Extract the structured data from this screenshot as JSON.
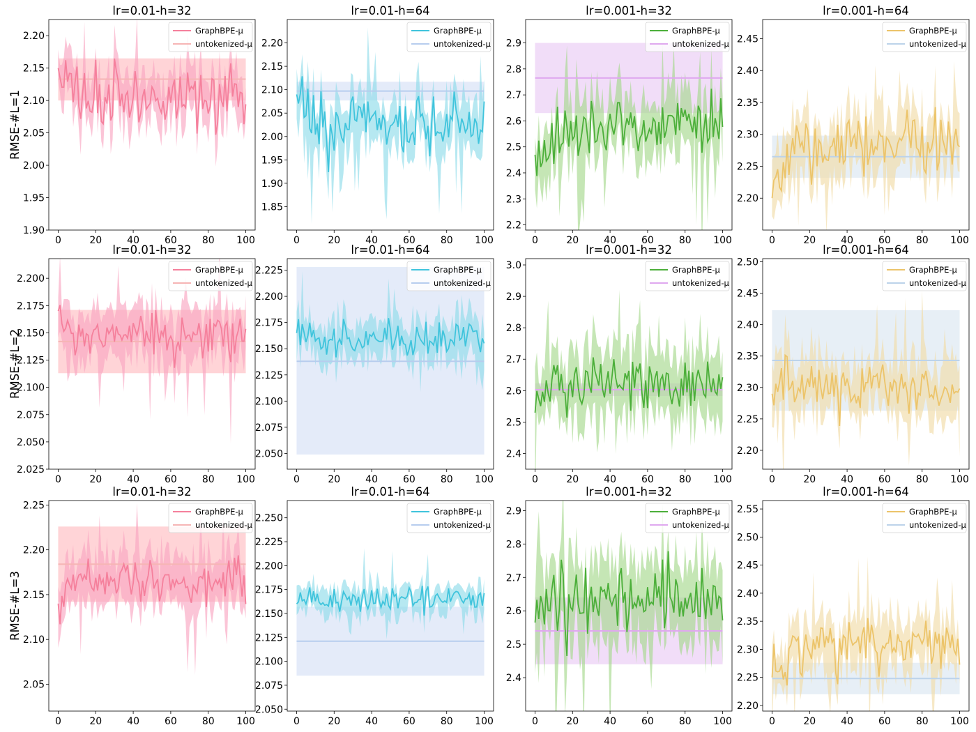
{
  "chart_data": {
    "type": "line",
    "x_range": [
      0,
      100
    ],
    "x_ticks": [
      0,
      20,
      40,
      60,
      80,
      100
    ],
    "legend_position": "top-right",
    "legend_labels": [
      "GraphBPE-μ",
      "untokenized-μ"
    ],
    "row_labels": [
      "RMSE-#L=1",
      "RMSE-#L=2",
      "RMSE-#L=3"
    ],
    "panels": [
      {
        "row": 0,
        "col": 0,
        "title": "lr=0.01-h=32",
        "line_color": "#f5809c",
        "band_color": "#f9a6c1",
        "base_color": "#f6b5b5",
        "base_band_color": "#ffb8bd",
        "ylim": [
          1.9,
          2.225
        ],
        "yticks": [
          "1.90",
          "1.95",
          "2.00",
          "2.05",
          "2.10",
          "2.15",
          "2.20"
        ],
        "series_mean": 2.105,
        "series_noise": 0.025,
        "series_band": 0.04,
        "series_start": 2.15,
        "series_dip": 0,
        "baseline": 2.133,
        "baseline_low": 2.1,
        "baseline_high": 2.165,
        "seed": 11
      },
      {
        "row": 0,
        "col": 1,
        "title": "lr=0.01-h=64",
        "line_color": "#40c4dc",
        "band_color": "#8fdcea",
        "base_color": "#b7cdee",
        "base_band_color": "#d2ddf5",
        "ylim": [
          1.8,
          2.25
        ],
        "yticks": [
          "1.85",
          "1.90",
          "1.95",
          "2.00",
          "2.05",
          "2.10",
          "2.15",
          "2.20"
        ],
        "series_mean": 2.02,
        "series_noise": 0.035,
        "series_band": 0.06,
        "series_start": 2.09,
        "series_dip": 0.05,
        "baseline": 2.097,
        "baseline_low": 2.077,
        "baseline_high": 2.117,
        "seed": 23
      },
      {
        "row": 0,
        "col": 2,
        "title": "lr=0.001-h=32",
        "line_color": "#4caf3a",
        "band_color": "#a6d98e",
        "base_color": "#dfa8ef",
        "base_band_color": "#e8c6f3",
        "ylim": [
          2.18,
          2.99
        ],
        "yticks": [
          "2.2",
          "2.3",
          "2.4",
          "2.5",
          "2.6",
          "2.7",
          "2.8",
          "2.9"
        ],
        "series_mean": 2.58,
        "series_noise": 0.06,
        "series_band": 0.12,
        "series_start": 2.47,
        "series_dip": 0,
        "baseline": 2.765,
        "baseline_low": 2.63,
        "baseline_high": 2.9,
        "seed": 37
      },
      {
        "row": 0,
        "col": 3,
        "title": "lr=0.001-h=64",
        "line_color": "#ecc46a",
        "band_color": "#f1dca7",
        "base_color": "#bcd3ea",
        "base_band_color": "#d7e4f0",
        "ylim": [
          2.15,
          2.48
        ],
        "yticks": [
          "2.20",
          "2.25",
          "2.30",
          "2.35",
          "2.40",
          "2.45"
        ],
        "series_mean": 2.285,
        "series_noise": 0.025,
        "series_band": 0.05,
        "series_start": 2.2,
        "series_dip": 0,
        "baseline": 2.265,
        "baseline_low": 2.232,
        "baseline_high": 2.298,
        "seed": 41
      },
      {
        "row": 1,
        "col": 0,
        "title": "lr=0.01-h=32",
        "line_color": "#f5809c",
        "band_color": "#f9a6c1",
        "base_color": "#f6b5b5",
        "base_band_color": "#ffb8bd",
        "ylim": [
          2.025,
          2.218
        ],
        "yticks": [
          "2.025",
          "2.050",
          "2.075",
          "2.100",
          "2.125",
          "2.150",
          "2.175",
          "2.200"
        ],
        "series_mean": 2.148,
        "series_noise": 0.012,
        "series_band": 0.025,
        "series_start": 2.17,
        "series_dip": 0,
        "baseline": 2.142,
        "baseline_low": 2.113,
        "baseline_high": 2.171,
        "seed": 53
      },
      {
        "row": 1,
        "col": 1,
        "title": "lr=0.01-h=64",
        "line_color": "#40c4dc",
        "band_color": "#8fdcea",
        "base_color": "#b7cdee",
        "base_band_color": "#d2ddf5",
        "ylim": [
          2.035,
          2.236
        ],
        "yticks": [
          "2.050",
          "2.075",
          "2.100",
          "2.125",
          "2.150",
          "2.175",
          "2.200",
          "2.225"
        ],
        "series_mean": 2.158,
        "series_noise": 0.008,
        "series_band": 0.02,
        "series_start": 2.165,
        "series_dip": 0,
        "baseline": 2.138,
        "baseline_low": 2.049,
        "baseline_high": 2.228,
        "seed": 67
      },
      {
        "row": 1,
        "col": 2,
        "title": "lr=0.001-h=32",
        "line_color": "#4caf3a",
        "band_color": "#a6d98e",
        "base_color": "#dfa8ef",
        "base_band_color": "#e8c6f3",
        "ylim": [
          2.35,
          3.02
        ],
        "yticks": [
          "2.4",
          "2.5",
          "2.6",
          "2.7",
          "2.8",
          "2.9",
          "3.0"
        ],
        "series_mean": 2.625,
        "series_noise": 0.045,
        "series_band": 0.12,
        "series_start": 2.53,
        "series_dip": 0,
        "baseline": 2.603,
        "baseline_low": 2.583,
        "baseline_high": 2.623,
        "seed": 79
      },
      {
        "row": 1,
        "col": 3,
        "title": "lr=0.001-h=64",
        "line_color": "#ecc46a",
        "band_color": "#f1dca7",
        "base_color": "#bcd3ea",
        "base_band_color": "#d7e4f0",
        "ylim": [
          2.17,
          2.505
        ],
        "yticks": [
          "2.20",
          "2.25",
          "2.30",
          "2.35",
          "2.40",
          "2.45",
          "2.50"
        ],
        "series_mean": 2.3,
        "series_noise": 0.022,
        "series_band": 0.05,
        "series_start": 2.29,
        "series_dip": 0,
        "baseline": 2.343,
        "baseline_low": 2.263,
        "baseline_high": 2.423,
        "seed": 83
      },
      {
        "row": 2,
        "col": 0,
        "title": "lr=0.01-h=32",
        "line_color": "#f5809c",
        "band_color": "#f9a6c1",
        "base_color": "#f6b5b5",
        "base_band_color": "#ffb8bd",
        "ylim": [
          2.02,
          2.255
        ],
        "yticks": [
          "2.05",
          "2.10",
          "2.15",
          "2.20",
          "2.25"
        ],
        "series_mean": 2.165,
        "series_noise": 0.013,
        "series_band": 0.03,
        "series_start": 2.14,
        "series_dip": 0,
        "baseline": 2.184,
        "baseline_low": 2.142,
        "baseline_high": 2.226,
        "seed": 97
      },
      {
        "row": 2,
        "col": 1,
        "title": "lr=0.01-h=64",
        "line_color": "#40c4dc",
        "band_color": "#8fdcea",
        "base_color": "#b7cdee",
        "base_band_color": "#d2ddf5",
        "ylim": [
          2.048,
          2.268
        ],
        "yticks": [
          "2.050",
          "2.075",
          "2.100",
          "2.125",
          "2.150",
          "2.175",
          "2.200",
          "2.225",
          "2.250"
        ],
        "series_mean": 2.165,
        "series_noise": 0.007,
        "series_band": 0.015,
        "series_start": 2.16,
        "series_dip": 0,
        "baseline": 2.121,
        "baseline_low": 2.085,
        "baseline_high": 2.157,
        "seed": 101
      },
      {
        "row": 2,
        "col": 2,
        "title": "lr=0.001-h=32",
        "line_color": "#4caf3a",
        "band_color": "#a6d98e",
        "base_color": "#dfa8ef",
        "base_band_color": "#e8c6f3",
        "ylim": [
          2.3,
          2.93
        ],
        "yticks": [
          "2.4",
          "2.5",
          "2.6",
          "2.7",
          "2.8",
          "2.9"
        ],
        "series_mean": 2.64,
        "series_noise": 0.05,
        "series_band": 0.13,
        "series_start": 2.565,
        "series_dip": 0,
        "baseline": 2.54,
        "baseline_low": 2.44,
        "baseline_high": 2.64,
        "seed": 113
      },
      {
        "row": 2,
        "col": 3,
        "title": "lr=0.001-h=64",
        "line_color": "#ecc46a",
        "band_color": "#f1dca7",
        "base_color": "#bcd3ea",
        "base_band_color": "#d7e4f0",
        "ylim": [
          2.19,
          2.565
        ],
        "yticks": [
          "2.20",
          "2.25",
          "2.30",
          "2.35",
          "2.40",
          "2.45",
          "2.50",
          "2.55"
        ],
        "series_mean": 2.305,
        "series_noise": 0.025,
        "series_band": 0.05,
        "series_start": 2.25,
        "series_dip": 0,
        "baseline": 2.248,
        "baseline_low": 2.22,
        "baseline_high": 2.276,
        "seed": 127
      }
    ]
  }
}
